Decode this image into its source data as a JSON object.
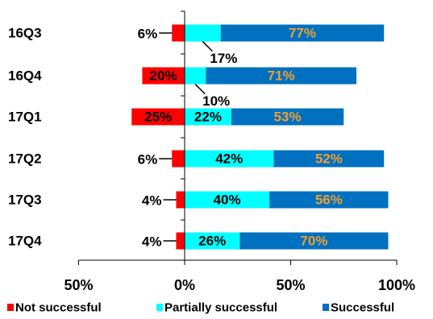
{
  "chart_data": {
    "type": "bar",
    "orientation": "horizontal",
    "stacked": true,
    "diverging": true,
    "categories": [
      "16Q3",
      "16Q4",
      "17Q1",
      "17Q2",
      "17Q3",
      "17Q4"
    ],
    "series": [
      {
        "name": "Not successful",
        "color": "#ff0000",
        "values": [
          6,
          20,
          25,
          6,
          4,
          4
        ],
        "labels": [
          "6%",
          "20%",
          "25%",
          "6%",
          "4%",
          "4%"
        ]
      },
      {
        "name": "Partially successful",
        "color": "#00ffff",
        "values": [
          17,
          10,
          22,
          42,
          40,
          26
        ],
        "labels": [
          "17%",
          "10%",
          "22%",
          "42%",
          "40%",
          "26%"
        ]
      },
      {
        "name": "Successful",
        "color": "#0070c0",
        "values": [
          77,
          71,
          53,
          52,
          56,
          70
        ],
        "labels": [
          "77%",
          "71%",
          "53%",
          "52%",
          "56%",
          "70%"
        ]
      }
    ],
    "xlim": [
      -50,
      100
    ],
    "xticks": [
      -50,
      0,
      50,
      100
    ],
    "xtick_labels": [
      "50%",
      "0%",
      "50%",
      "100%"
    ],
    "legend_position": "bottom",
    "grid": false,
    "successful_label_color": "#f0a030"
  }
}
